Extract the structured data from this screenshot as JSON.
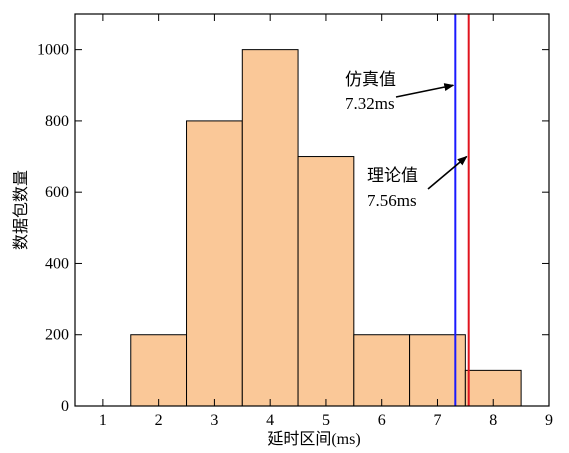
{
  "chart_data": {
    "type": "bar",
    "xlabel": "延时区间(ms)",
    "ylabel": "数据包数量",
    "xlim": [
      0.5,
      9
    ],
    "ylim": [
      0,
      1100
    ],
    "xticks": [
      1,
      2,
      3,
      4,
      5,
      6,
      7,
      8,
      9
    ],
    "yticks": [
      0,
      200,
      400,
      600,
      800,
      1000
    ],
    "grid": false,
    "bar_color": "#FAC898",
    "bins": [
      {
        "x0": 1.5,
        "x1": 2.5,
        "value": 200
      },
      {
        "x0": 2.5,
        "x1": 3.5,
        "value": 800
      },
      {
        "x0": 3.5,
        "x1": 4.5,
        "value": 1000
      },
      {
        "x0": 4.5,
        "x1": 5.5,
        "value": 700
      },
      {
        "x0": 5.5,
        "x1": 6.5,
        "value": 200
      },
      {
        "x0": 6.5,
        "x1": 7.5,
        "value": 200
      },
      {
        "x0": 7.5,
        "x1": 8.5,
        "value": 100
      }
    ],
    "vlines": [
      {
        "x": 7.32,
        "color": "#1a1aff"
      },
      {
        "x": 7.56,
        "color": "#e0141e"
      }
    ],
    "annotations": [
      {
        "line1": "仿真值",
        "line2": "7.32ms",
        "target_x": 7.32,
        "target_y": 900
      },
      {
        "line1": "理论值",
        "line2": "7.56ms",
        "target_x": 7.56,
        "target_y": 700
      }
    ]
  }
}
